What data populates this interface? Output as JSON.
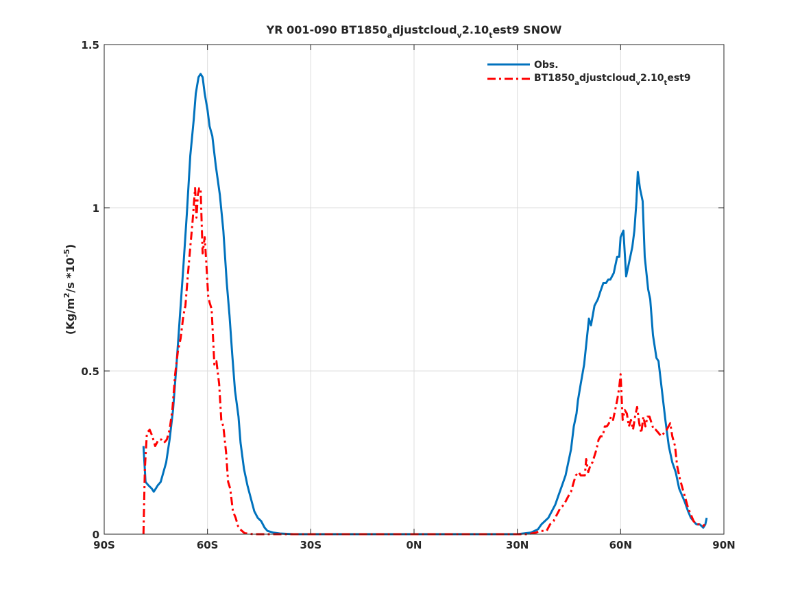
{
  "chart_data": {
    "type": "line",
    "title": {
      "pre": "YR 001-090 BT1850",
      "s1": "a",
      "mid": "djustcloud",
      "s2": "v",
      "mid2": "2.10",
      "s3": "t",
      "post": "est9 SNOW"
    },
    "ylabel": {
      "pre": "(Kg/m",
      "sup1": "2",
      "mid": "/s *10",
      "sup2": "-5",
      "post": ")"
    },
    "xlim": [
      -90,
      90
    ],
    "ylim": [
      0,
      1.5
    ],
    "xticks": [
      {
        "value": -90,
        "label": "90S"
      },
      {
        "value": -60,
        "label": "60S"
      },
      {
        "value": -30,
        "label": "30S"
      },
      {
        "value": 0,
        "label": "0N"
      },
      {
        "value": 30,
        "label": "30N"
      },
      {
        "value": 60,
        "label": "60N"
      },
      {
        "value": 90,
        "label": "90N"
      }
    ],
    "yticks": [
      {
        "value": 0,
        "label": "0"
      },
      {
        "value": 0.5,
        "label": "0.5"
      },
      {
        "value": 1,
        "label": "1"
      },
      {
        "value": 1.5,
        "label": "1.5"
      }
    ],
    "grid": true,
    "legend_position": "top-right",
    "series": [
      {
        "name": "Obs.",
        "color": "#0072BD",
        "style": "solid",
        "x": [
          -78.6,
          -78.0,
          -77.2,
          -76.2,
          -75.6,
          -75.0,
          -74.4,
          -73.6,
          -72.8,
          -72.0,
          -71.0,
          -70.0,
          -69.0,
          -68.0,
          -67.0,
          -66.0,
          -65.0,
          -64.0,
          -63.4,
          -62.6,
          -62.0,
          -61.4,
          -60.8,
          -60.0,
          -59.4,
          -58.6,
          -57.6,
          -56.4,
          -55.4,
          -54.4,
          -53.6,
          -52.8,
          -52.0,
          -51.0,
          -50.4,
          -49.4,
          -48.4,
          -47.4,
          -46.4,
          -45.4,
          -44.4,
          -43.4,
          -42.6,
          -41.0,
          -39.0,
          -35.0,
          -20.0,
          0.0,
          20.0,
          30.0,
          34.0,
          35.0,
          36.0,
          37.0,
          38.0,
          39.0,
          40.0,
          41.0,
          42.0,
          43.0,
          44.0,
          44.6,
          45.2,
          45.6,
          46.4,
          47.2,
          47.6,
          48.4,
          49.4,
          49.8,
          50.4,
          50.8,
          51.4,
          52.4,
          53.4,
          54.0,
          55.0,
          55.8,
          56.4,
          57.0,
          58.0,
          58.4,
          59.0,
          59.6,
          60.0,
          60.8,
          61.6,
          62.6,
          63.4,
          64.0,
          64.6,
          65.0,
          65.6,
          66.4,
          67.0,
          68.0,
          68.6,
          69.4,
          70.4,
          71.0,
          72.0,
          73.0,
          74.0,
          75.0,
          76.0,
          77.0,
          77.8,
          78.6,
          79.6,
          80.4,
          81.2,
          82.0,
          83.0,
          84.0,
          84.6,
          85.0
        ],
        "y": [
          0.27,
          0.16,
          0.15,
          0.14,
          0.13,
          0.14,
          0.15,
          0.16,
          0.19,
          0.22,
          0.29,
          0.38,
          0.52,
          0.67,
          0.82,
          0.98,
          1.16,
          1.27,
          1.35,
          1.4,
          1.41,
          1.4,
          1.35,
          1.3,
          1.25,
          1.22,
          1.13,
          1.04,
          0.93,
          0.77,
          0.67,
          0.55,
          0.44,
          0.36,
          0.28,
          0.2,
          0.15,
          0.11,
          0.07,
          0.05,
          0.04,
          0.02,
          0.01,
          0.005,
          0.002,
          0.0,
          0.0,
          0.0,
          0.0,
          0.0,
          0.005,
          0.01,
          0.015,
          0.03,
          0.04,
          0.05,
          0.07,
          0.09,
          0.12,
          0.15,
          0.18,
          0.21,
          0.24,
          0.26,
          0.33,
          0.37,
          0.41,
          0.46,
          0.52,
          0.56,
          0.62,
          0.66,
          0.64,
          0.7,
          0.72,
          0.74,
          0.77,
          0.77,
          0.78,
          0.78,
          0.8,
          0.82,
          0.85,
          0.85,
          0.91,
          0.93,
          0.79,
          0.84,
          0.88,
          0.93,
          1.02,
          1.11,
          1.06,
          1.02,
          0.85,
          0.75,
          0.72,
          0.61,
          0.54,
          0.53,
          0.44,
          0.35,
          0.27,
          0.22,
          0.19,
          0.14,
          0.12,
          0.1,
          0.07,
          0.05,
          0.04,
          0.03,
          0.03,
          0.02,
          0.03,
          0.05
        ]
      },
      {
        "name": "BT1850_adjustcloud_v2.10_test9",
        "legend": {
          "pre": "BT1850",
          "s1": "a",
          "mid": "djustcloud",
          "s2": "v",
          "mid2": "2.10",
          "s3": "t",
          "post": "est9"
        },
        "color": "#FF0000",
        "style": "dashdot",
        "x": [
          -78.6,
          -78.2,
          -77.6,
          -76.8,
          -76.0,
          -75.2,
          -74.2,
          -73.4,
          -72.6,
          -71.8,
          -71.0,
          -70.2,
          -69.4,
          -68.6,
          -67.8,
          -67.0,
          -66.4,
          -65.8,
          -65.0,
          -64.4,
          -63.6,
          -63.2,
          -62.8,
          -62.4,
          -62.0,
          -61.4,
          -60.8,
          -60.4,
          -59.8,
          -59.4,
          -58.8,
          -58.0,
          -57.4,
          -56.6,
          -56.0,
          -55.4,
          -54.6,
          -54.0,
          -53.4,
          -52.6,
          -51.8,
          -51.0,
          -50.0,
          -49.2,
          -48.4,
          -47.6,
          -46.6,
          -45.0,
          -44.0,
          -42.0,
          -38.0,
          -30.0,
          -10.0,
          0.0,
          10.0,
          20.0,
          30.0,
          33.0,
          34.5,
          35.5,
          36.5,
          37.5,
          38.5,
          39.5,
          40.5,
          41.5,
          42.5,
          43.5,
          44.5,
          45.0,
          45.6,
          46.4,
          47.0,
          47.8,
          48.4,
          49.0,
          49.6,
          50.0,
          50.6,
          51.2,
          51.8,
          52.4,
          53.0,
          53.6,
          54.2,
          54.8,
          55.4,
          56.0,
          56.6,
          57.2,
          57.8,
          58.4,
          59.0,
          59.6,
          60.0,
          60.6,
          61.2,
          61.8,
          62.4,
          63.0,
          63.6,
          64.2,
          64.8,
          65.4,
          66.0,
          66.6,
          67.2,
          67.8,
          68.4,
          69.0,
          69.6,
          70.2,
          71.0,
          71.8,
          72.6,
          73.4,
          74.4,
          75.0,
          75.8,
          76.4,
          77.2,
          78.0,
          78.8,
          79.6,
          80.4,
          81.2,
          82.0,
          82.8,
          83.6,
          84.0,
          84.4
        ],
        "y": [
          0.0,
          0.2,
          0.31,
          0.32,
          0.3,
          0.27,
          0.29,
          0.29,
          0.28,
          0.29,
          0.32,
          0.38,
          0.49,
          0.56,
          0.6,
          0.67,
          0.7,
          0.78,
          0.88,
          0.95,
          1.06,
          0.97,
          1.04,
          1.06,
          1.06,
          0.86,
          0.91,
          0.84,
          0.73,
          0.71,
          0.69,
          0.52,
          0.53,
          0.46,
          0.35,
          0.33,
          0.25,
          0.16,
          0.14,
          0.07,
          0.05,
          0.02,
          0.01,
          0.003,
          0.002,
          0.001,
          0.0,
          0.0,
          0.0,
          0.0,
          0.0,
          0.0,
          0.0,
          0.0,
          0.0,
          0.0,
          0.0,
          0.0,
          0.003,
          0.005,
          0.01,
          0.01,
          0.01,
          0.03,
          0.04,
          0.06,
          0.08,
          0.09,
          0.11,
          0.12,
          0.13,
          0.16,
          0.18,
          0.19,
          0.18,
          0.18,
          0.18,
          0.23,
          0.19,
          0.21,
          0.22,
          0.24,
          0.26,
          0.29,
          0.3,
          0.3,
          0.33,
          0.33,
          0.34,
          0.36,
          0.35,
          0.38,
          0.41,
          0.45,
          0.49,
          0.35,
          0.38,
          0.37,
          0.33,
          0.35,
          0.32,
          0.36,
          0.39,
          0.34,
          0.31,
          0.36,
          0.33,
          0.36,
          0.36,
          0.34,
          0.32,
          0.32,
          0.31,
          0.3,
          0.31,
          0.32,
          0.34,
          0.3,
          0.27,
          0.21,
          0.17,
          0.14,
          0.11,
          0.08,
          0.06,
          0.04,
          0.03,
          0.03,
          0.025,
          0.025,
          0.03
        ]
      }
    ]
  }
}
